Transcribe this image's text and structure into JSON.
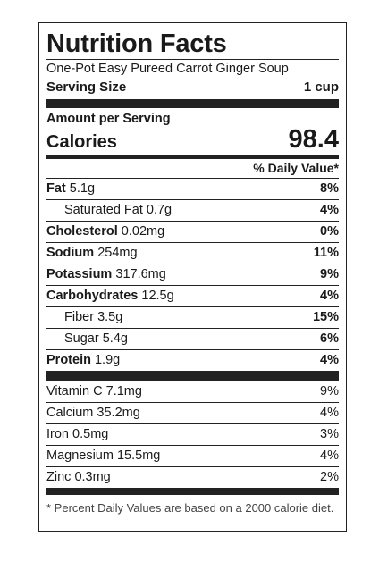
{
  "title": "Nutrition Facts",
  "recipe_name": "One-Pot Easy Pureed Carrot Ginger Soup",
  "serving": {
    "label": "Serving Size",
    "value": "1 cup"
  },
  "amount_per_serving": "Amount per Serving",
  "calories": {
    "label": "Calories",
    "value": "98.4"
  },
  "daily_value_header": "% Daily Value*",
  "nutrients": [
    {
      "name": "Fat",
      "amount": "5.1g",
      "percent": "8%"
    },
    {
      "name": "Saturated Fat",
      "amount": "0.7g",
      "percent": "4%"
    },
    {
      "name": "Cholesterol",
      "amount": "0.02mg",
      "percent": "0%"
    },
    {
      "name": "Sodium",
      "amount": "254mg",
      "percent": "11%"
    },
    {
      "name": "Potassium",
      "amount": "317.6mg",
      "percent": "9%"
    },
    {
      "name": "Carbohydrates",
      "amount": "12.5g",
      "percent": "4%"
    },
    {
      "name": "Fiber",
      "amount": "3.5g",
      "percent": "15%"
    },
    {
      "name": "Sugar",
      "amount": "5.4g",
      "percent": "6%"
    },
    {
      "name": "Protein",
      "amount": "1.9g",
      "percent": "4%"
    }
  ],
  "vitamins": [
    {
      "name": "Vitamin C",
      "amount": "7.1mg",
      "percent": "9%"
    },
    {
      "name": "Calcium",
      "amount": "35.2mg",
      "percent": "4%"
    },
    {
      "name": "Iron",
      "amount": "0.5mg",
      "percent": "3%"
    },
    {
      "name": "Magnesium",
      "amount": "15.5mg",
      "percent": "4%"
    },
    {
      "name": "Zinc",
      "amount": "0.3mg",
      "percent": "2%"
    }
  ],
  "footnote": "* Percent Daily Values are based on a 2000 calorie diet."
}
